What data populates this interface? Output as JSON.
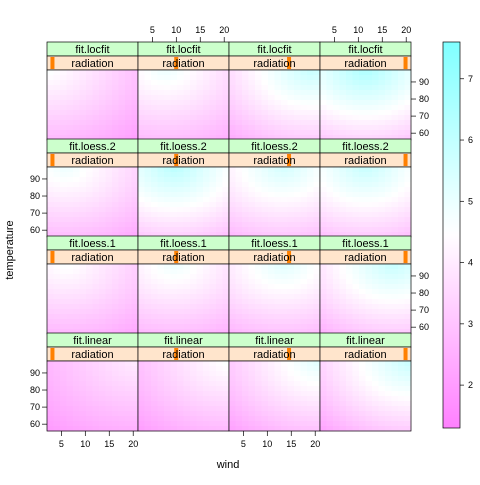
{
  "chart_data": {
    "type": "heatmap",
    "layout": "lattice level plot, 4 rows x 4 columns of panels",
    "xlabel": "wind",
    "ylabel": "temperature",
    "x_ticks": [
      5,
      10,
      15,
      20
    ],
    "y_ticks": [
      60,
      70,
      80,
      90
    ],
    "xlim": [
      2,
      21
    ],
    "ylim": [
      56,
      97
    ],
    "colorkey": {
      "ticks": [
        2,
        3,
        4,
        5,
        6,
        7
      ],
      "range": [
        1.3,
        7.6
      ],
      "low_color": "#ff80ff",
      "mid_color": "#ffffff",
      "high_color": "#80ffff"
    },
    "strip_colors": {
      "model": "#ccffcc",
      "radiation": "#ffe5cc",
      "marker": "#ff8000"
    },
    "rows": [
      {
        "model": "fit.locfit"
      },
      {
        "model": "fit.loess.2"
      },
      {
        "model": "fit.loess.1"
      },
      {
        "model": "fit.linear"
      }
    ],
    "radiation_label": "radiation",
    "radiation_levels": [
      0.06,
      0.42,
      0.66,
      0.94
    ]
  }
}
